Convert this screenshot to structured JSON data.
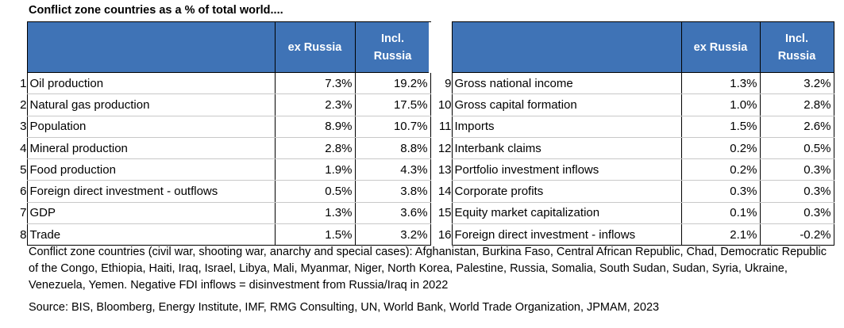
{
  "title": "Conflict zone countries as a % of total world....",
  "headers": {
    "ex_russia": "ex Russia",
    "incl_russia_1": "Incl.",
    "incl_russia_2": "Russia"
  },
  "chart_data": {
    "type": "table",
    "title": "Conflict zone countries as a % of total world....",
    "columns": [
      "",
      "ex Russia",
      "Incl. Russia"
    ],
    "left_rows": [
      {
        "num": "1",
        "label": "Oil production",
        "ex": "7.3%",
        "incl": "19.2%"
      },
      {
        "num": "2",
        "label": "Natural gas production",
        "ex": "2.3%",
        "incl": "17.5%"
      },
      {
        "num": "3",
        "label": "Population",
        "ex": "8.9%",
        "incl": "10.7%"
      },
      {
        "num": "4",
        "label": "Mineral production",
        "ex": "2.8%",
        "incl": "8.8%"
      },
      {
        "num": "5",
        "label": "Food production",
        "ex": "1.9%",
        "incl": "4.3%"
      },
      {
        "num": "6",
        "label": "Foreign direct investment - outflows",
        "ex": "0.5%",
        "incl": "3.8%"
      },
      {
        "num": "7",
        "label": "GDP",
        "ex": "1.3%",
        "incl": "3.6%"
      },
      {
        "num": "8",
        "label": "Trade",
        "ex": "1.5%",
        "incl": "3.2%"
      }
    ],
    "right_rows": [
      {
        "num": "9",
        "label": "Gross national income",
        "ex": "1.3%",
        "incl": "3.2%"
      },
      {
        "num": "10",
        "label": "Gross capital formation",
        "ex": "1.0%",
        "incl": "2.8%"
      },
      {
        "num": "11",
        "label": "Imports",
        "ex": "1.5%",
        "incl": "2.6%"
      },
      {
        "num": "12",
        "label": "Interbank claims",
        "ex": "0.2%",
        "incl": "0.5%"
      },
      {
        "num": "13",
        "label": "Portfolio investment inflows",
        "ex": "0.2%",
        "incl": "0.3%"
      },
      {
        "num": "14",
        "label": "Corporate profits",
        "ex": "0.3%",
        "incl": "0.3%"
      },
      {
        "num": "15",
        "label": "Equity market capitalization",
        "ex": "0.1%",
        "incl": "0.3%"
      },
      {
        "num": "16",
        "label": "Foreign direct investment - inflows",
        "ex": "2.1%",
        "incl": "-0.2%"
      }
    ]
  },
  "footnote": "Conflict zone countries (civil war, shooting war, anarchy and special cases): Afghanistan, Burkina Faso, Central African Republic, Chad, Democratic Republic of the Congo, Ethiopia, Haiti, Iraq, Israel, Libya, Mali, Myanmar, Niger, North Korea, Palestine, Russia, Somalia, South Sudan, Sudan, Syria, Ukraine, Venezuela, Yemen. Negative FDI inflows = disinvestment from Russia/Iraq in 2022",
  "source": "Source: BIS, Bloomberg, Energy Institute, IMF, RMG Consulting, UN, World Bank, World Trade Organization, JPMAM, 2023"
}
